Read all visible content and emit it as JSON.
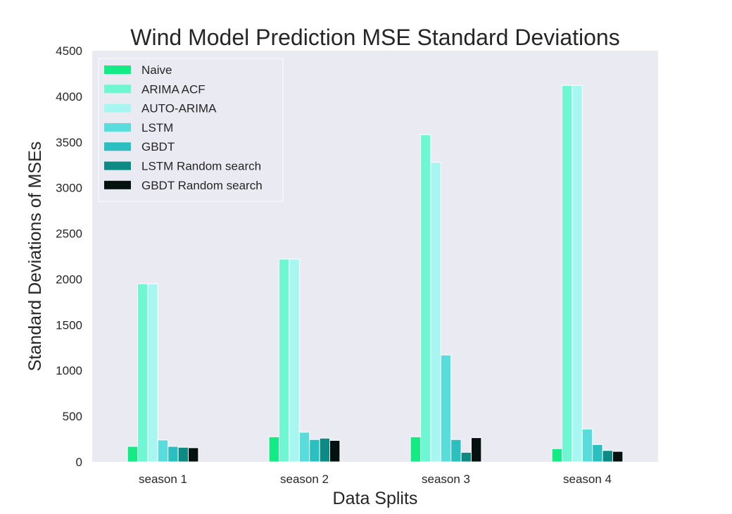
{
  "chart_data": {
    "type": "bar",
    "title": "Wind Model Prediction MSE Standard Deviations",
    "xlabel": "Data Splits",
    "ylabel": "Standard Deviations of MSEs",
    "ylim": [
      0,
      4500
    ],
    "yticks": [
      0,
      500,
      1000,
      1500,
      2000,
      2500,
      3000,
      3500,
      4000,
      4500
    ],
    "grid": false,
    "legend_position": "top-left",
    "categories": [
      "season 1",
      "season 2",
      "season 3",
      "season 4"
    ],
    "series": [
      {
        "name": "Naive",
        "color": "#13eb85",
        "values": [
          170,
          275,
          275,
          145
        ]
      },
      {
        "name": "ARIMA ACF",
        "color": "#6ff7d3",
        "values": [
          1950,
          2220,
          3580,
          4120
        ]
      },
      {
        "name": "AUTO-ARIMA",
        "color": "#a8f6f1",
        "values": [
          1950,
          2220,
          3280,
          4120
        ]
      },
      {
        "name": "LSTM",
        "color": "#58dcdc",
        "values": [
          240,
          325,
          1170,
          360
        ]
      },
      {
        "name": "GBDT",
        "color": "#2cbfbf",
        "values": [
          170,
          245,
          245,
          190
        ]
      },
      {
        "name": "LSTM Random search",
        "color": "#0d8a84",
        "values": [
          160,
          260,
          105,
          125
        ]
      },
      {
        "name": "GBDT Random search",
        "color": "#03120f",
        "values": [
          155,
          235,
          265,
          115
        ]
      }
    ]
  }
}
